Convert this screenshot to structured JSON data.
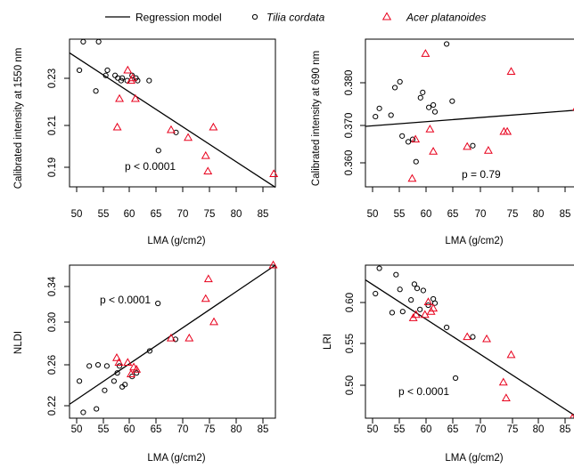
{
  "legend": {
    "position": "top",
    "entries": [
      {
        "label": "Regression model",
        "kind": "line",
        "color": "#000000"
      },
      {
        "label": "Tilia cordata",
        "kind": "circle",
        "color": "#000000",
        "italic": true
      },
      {
        "label": "Acer platanoides",
        "kind": "triangle",
        "color": "#e8001c",
        "italic": true
      }
    ]
  },
  "chart_data": [
    {
      "type": "scatter",
      "xlabel": "LMA (g/cm2)",
      "ylabel": "Calibrated intensity at 1550 nm",
      "xlim": [
        49,
        86.5
      ],
      "ylim": [
        0.181,
        0.238
      ],
      "xticks": [
        "50",
        "55",
        "60",
        "65",
        "70",
        "75",
        "80",
        "85"
      ],
      "yticks": [
        "0.19",
        "0.21",
        "0.23"
      ],
      "grid": false,
      "annotation": "p < 0.0001",
      "regression": {
        "x": [
          49,
          86.5
        ],
        "y": [
          0.2327,
          0.1808
        ]
      },
      "series": [
        {
          "name": "Tilia cordata",
          "marker": "circle",
          "color": "#000000",
          "points": [
            [
              50.8,
              0.226
            ],
            [
              51.5,
              0.237
            ],
            [
              53.8,
              0.218
            ],
            [
              54.3,
              0.237
            ],
            [
              55.6,
              0.224
            ],
            [
              55.9,
              0.226
            ],
            [
              57.3,
              0.224
            ],
            [
              57.8,
              0.223
            ],
            [
              58.4,
              0.222
            ],
            [
              58.6,
              0.223
            ],
            [
              59.5,
              0.222
            ],
            [
              60.4,
              0.224
            ],
            [
              61.1,
              0.223
            ],
            [
              61.4,
              0.222
            ],
            [
              63.5,
              0.222
            ],
            [
              65.2,
              0.195
            ],
            [
              68.4,
              0.202
            ]
          ]
        },
        {
          "name": "Acer platanoides",
          "marker": "triangle",
          "color": "#e8001c",
          "points": [
            [
              57.7,
              0.204
            ],
            [
              58.1,
              0.215
            ],
            [
              59.6,
              0.226
            ],
            [
              60.2,
              0.222
            ],
            [
              60.5,
              0.223
            ],
            [
              61.0,
              0.215
            ],
            [
              67.5,
              0.203
            ],
            [
              70.6,
              0.2
            ],
            [
              73.8,
              0.193
            ],
            [
              74.2,
              0.187
            ],
            [
              75.2,
              0.204
            ],
            [
              86.2,
              0.186
            ]
          ]
        }
      ]
    },
    {
      "type": "scatter",
      "xlabel": "LMA (g/cm2)",
      "ylabel": "Calibrated intensity at 690 nm",
      "xlim": [
        49,
        86.5
      ],
      "ylim": [
        0.357,
        0.3875
      ],
      "xticks": [
        "50",
        "55",
        "60",
        "65",
        "70",
        "75",
        "80",
        "85"
      ],
      "yticks": [
        "0.360",
        "0.370",
        "0.380"
      ],
      "grid": false,
      "annotation": "p = 0.79",
      "regression": {
        "x": [
          49,
          86.5
        ],
        "y": [
          0.3695,
          0.3728
        ]
      },
      "series": [
        {
          "name": "Tilia cordata",
          "marker": "circle",
          "color": "#000000",
          "points": [
            [
              50.8,
              0.3715
            ],
            [
              51.5,
              0.3732
            ],
            [
              53.6,
              0.3718
            ],
            [
              54.3,
              0.3775
            ],
            [
              55.2,
              0.3787
            ],
            [
              55.6,
              0.3675
            ],
            [
              56.7,
              0.3663
            ],
            [
              57.5,
              0.3668
            ],
            [
              58.1,
              0.3622
            ],
            [
              58.9,
              0.3754
            ],
            [
              59.3,
              0.3765
            ],
            [
              60.4,
              0.3734
            ],
            [
              61.2,
              0.3739
            ],
            [
              61.5,
              0.3725
            ],
            [
              63.6,
              0.3865
            ],
            [
              64.6,
              0.3747
            ],
            [
              68.3,
              0.3655
            ]
          ]
        },
        {
          "name": "Acer platanoides",
          "marker": "triangle",
          "color": "#e8001c",
          "points": [
            [
              57.4,
              0.3587
            ],
            [
              58.0,
              0.3668
            ],
            [
              59.8,
              0.3845
            ],
            [
              60.6,
              0.3689
            ],
            [
              61.2,
              0.3643
            ],
            [
              67.3,
              0.3653
            ],
            [
              71.1,
              0.3645
            ],
            [
              73.9,
              0.3684
            ],
            [
              74.5,
              0.3684
            ],
            [
              75.2,
              0.3808
            ],
            [
              87.0,
              0.3734
            ]
          ]
        }
      ]
    },
    {
      "type": "scatter",
      "xlabel": "LMA (g/cm2)",
      "ylabel": "NLDI",
      "xlim": [
        49,
        86.5
      ],
      "ylim": [
        0.2165,
        0.3485
      ],
      "xticks": [
        "50",
        "55",
        "60",
        "65",
        "70",
        "75",
        "80",
        "85"
      ],
      "yticks": [
        "0.22",
        "0.26",
        "0.30",
        "0.34"
      ],
      "grid": false,
      "annotation": "p < 0.0001",
      "regression": {
        "x": [
          49,
          86.5
        ],
        "y": [
          0.2285,
          0.3485
        ]
      },
      "series": [
        {
          "name": "Tilia cordata",
          "marker": "circle",
          "color": "#000000",
          "points": [
            [
              50.8,
              0.2485
            ],
            [
              51.5,
              0.2215
            ],
            [
              52.6,
              0.2615
            ],
            [
              53.9,
              0.2245
            ],
            [
              54.2,
              0.2625
            ],
            [
              55.4,
              0.2405
            ],
            [
              55.8,
              0.2615
            ],
            [
              57.1,
              0.2485
            ],
            [
              57.7,
              0.2555
            ],
            [
              58.1,
              0.2615
            ],
            [
              58.6,
              0.2435
            ],
            [
              59.1,
              0.2455
            ],
            [
              60.4,
              0.2525
            ],
            [
              61.2,
              0.2555
            ],
            [
              63.6,
              0.2745
            ],
            [
              65.1,
              0.3155
            ],
            [
              68.3,
              0.2845
            ]
          ]
        },
        {
          "name": "Acer platanoides",
          "marker": "triangle",
          "color": "#e8001c",
          "points": [
            [
              57.6,
              0.2685
            ],
            [
              58.0,
              0.2645
            ],
            [
              59.6,
              0.2645
            ],
            [
              60.2,
              0.2545
            ],
            [
              60.7,
              0.2605
            ],
            [
              61.2,
              0.2585
            ],
            [
              67.5,
              0.2855
            ],
            [
              70.8,
              0.2855
            ],
            [
              73.8,
              0.3195
            ],
            [
              74.3,
              0.3365
            ],
            [
              75.3,
              0.2995
            ],
            [
              86.1,
              0.3485
            ]
          ]
        }
      ]
    },
    {
      "type": "scatter",
      "xlabel": "LMA (g/cm2)",
      "ylabel": "LRI",
      "xlim": [
        49,
        86.5
      ],
      "ylim": [
        0.4845,
        0.6295
      ],
      "xticks": [
        "50",
        "55",
        "60",
        "65",
        "70",
        "75",
        "80",
        "85"
      ],
      "yticks": [
        "0.50",
        "0.55",
        "0.60"
      ],
      "grid": false,
      "annotation": "p < 0.0001",
      "regression": {
        "x": [
          49,
          86.5
        ],
        "y": [
          0.6155,
          0.4875
        ]
      },
      "series": [
        {
          "name": "Tilia cordata",
          "marker": "circle",
          "color": "#000000",
          "points": [
            [
              50.8,
              0.6025
            ],
            [
              51.5,
              0.6265
            ],
            [
              53.8,
              0.5845
            ],
            [
              54.5,
              0.6205
            ],
            [
              55.2,
              0.6065
            ],
            [
              55.7,
              0.5855
            ],
            [
              57.2,
              0.5965
            ],
            [
              57.8,
              0.6115
            ],
            [
              58.3,
              0.6075
            ],
            [
              58.8,
              0.5875
            ],
            [
              59.4,
              0.6055
            ],
            [
              60.3,
              0.5915
            ],
            [
              61.2,
              0.5975
            ],
            [
              61.5,
              0.5935
            ],
            [
              63.6,
              0.5705
            ],
            [
              65.2,
              0.5225
            ],
            [
              68.3,
              0.5615
            ]
          ]
        },
        {
          "name": "Acer platanoides",
          "marker": "triangle",
          "color": "#e8001c",
          "points": [
            [
              57.6,
              0.5795
            ],
            [
              58.1,
              0.5825
            ],
            [
              59.7,
              0.5825
            ],
            [
              60.3,
              0.5945
            ],
            [
              60.8,
              0.5855
            ],
            [
              61.2,
              0.5885
            ],
            [
              67.3,
              0.5615
            ],
            [
              70.8,
              0.5595
            ],
            [
              73.8,
              0.5185
            ],
            [
              74.3,
              0.5035
            ],
            [
              75.2,
              0.5445
            ],
            [
              86.2,
              0.4845
            ]
          ]
        }
      ]
    }
  ]
}
